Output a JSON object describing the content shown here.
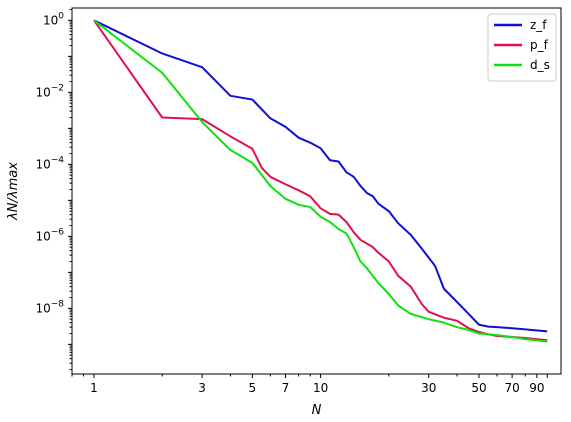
{
  "chart_data": {
    "type": "line",
    "xscale": "log",
    "yscale": "log",
    "xlim": [
      0.8,
      115
    ],
    "ylim": [
      1.5e-10,
      2.2
    ],
    "xlabel": "N",
    "ylabel": "λN/λmax",
    "xticks": [
      {
        "value": 1,
        "label": "1"
      },
      {
        "value": 3,
        "label": "3"
      },
      {
        "value": 5,
        "label": "5"
      },
      {
        "value": 7,
        "label": "7"
      },
      {
        "value": 10,
        "label": "10"
      },
      {
        "value": 30,
        "label": "30"
      },
      {
        "value": 50,
        "label": "50"
      },
      {
        "value": 70,
        "label": "70"
      },
      {
        "value": 90,
        "label": "90"
      }
    ],
    "yticks": [
      {
        "value": 1,
        "mantissa": "10",
        "exponent": "0"
      },
      {
        "value": 0.01,
        "mantissa": "10",
        "exponent": "−2"
      },
      {
        "value": 0.0001,
        "mantissa": "10",
        "exponent": "−4"
      },
      {
        "value": 1e-06,
        "mantissa": "10",
        "exponent": "−6"
      },
      {
        "value": 1e-08,
        "mantissa": "10",
        "exponent": "−8"
      }
    ],
    "legend_position": "top-right",
    "grid": false,
    "series": [
      {
        "name": "z_f",
        "color": "#1010d0",
        "x": [
          1,
          2,
          3,
          4,
          5,
          6,
          7,
          8,
          9,
          10,
          11,
          12,
          13,
          14,
          15,
          16,
          17,
          18,
          20,
          22,
          25,
          28,
          32,
          35,
          40,
          45,
          50,
          55,
          60,
          70,
          80,
          100
        ],
        "y": [
          1,
          0.12,
          0.05,
          0.008,
          0.0063,
          0.0019,
          0.0011,
          0.00055,
          0.0004,
          0.00028,
          0.00013,
          0.00012,
          6e-05,
          4.5e-05,
          2.5e-05,
          1.6e-05,
          1.3e-05,
          8e-06,
          5e-06,
          2.3e-06,
          1.1e-06,
          4.5e-07,
          1.5e-07,
          3.5e-08,
          1.5e-08,
          7e-09,
          3.5e-09,
          3.1e-09,
          3e-09,
          2.8e-09,
          2.6e-09,
          2.3e-09
        ]
      },
      {
        "name": "p_f",
        "color": "#e0104a",
        "x": [
          1,
          2,
          3,
          4,
          5,
          5.5,
          6,
          7,
          8,
          9,
          10,
          11,
          12,
          13,
          14,
          15,
          17,
          18,
          20,
          22,
          25,
          28,
          30,
          35,
          40,
          45,
          50,
          55,
          60,
          70,
          80,
          100
        ],
        "y": [
          1,
          0.002,
          0.0018,
          0.0006,
          0.00027,
          8e-05,
          4.5e-05,
          2.8e-05,
          1.9e-05,
          1.3e-05,
          6e-06,
          4.2e-06,
          4e-06,
          2.5e-06,
          1.3e-06,
          8e-07,
          5e-07,
          3.5e-07,
          2e-07,
          8e-08,
          4e-08,
          1.3e-08,
          8e-09,
          5.5e-09,
          4.5e-09,
          2.8e-09,
          2.2e-09,
          1.9e-09,
          1.7e-09,
          1.6e-09,
          1.5e-09,
          1.3e-09
        ]
      },
      {
        "name": "d_s",
        "color": "#10e010",
        "x": [
          1,
          2,
          3,
          4,
          5,
          6,
          7,
          8,
          9,
          10,
          11,
          12,
          13,
          14,
          15,
          16,
          18,
          20,
          22,
          25,
          30,
          35,
          40,
          45,
          50,
          55,
          60,
          70,
          80,
          100
        ],
        "y": [
          1,
          0.035,
          0.0015,
          0.00025,
          0.00011,
          2.5e-05,
          1.1e-05,
          7.5e-06,
          6.5e-06,
          3.5e-06,
          2.5e-06,
          1.6e-06,
          1.2e-06,
          5e-07,
          2e-07,
          1.3e-07,
          5e-08,
          2.5e-08,
          1.2e-08,
          7e-09,
          5e-09,
          4e-09,
          3e-09,
          2.5e-09,
          2e-09,
          1.9e-09,
          1.8e-09,
          1.6e-09,
          1.4e-09,
          1.2e-09
        ]
      }
    ]
  }
}
